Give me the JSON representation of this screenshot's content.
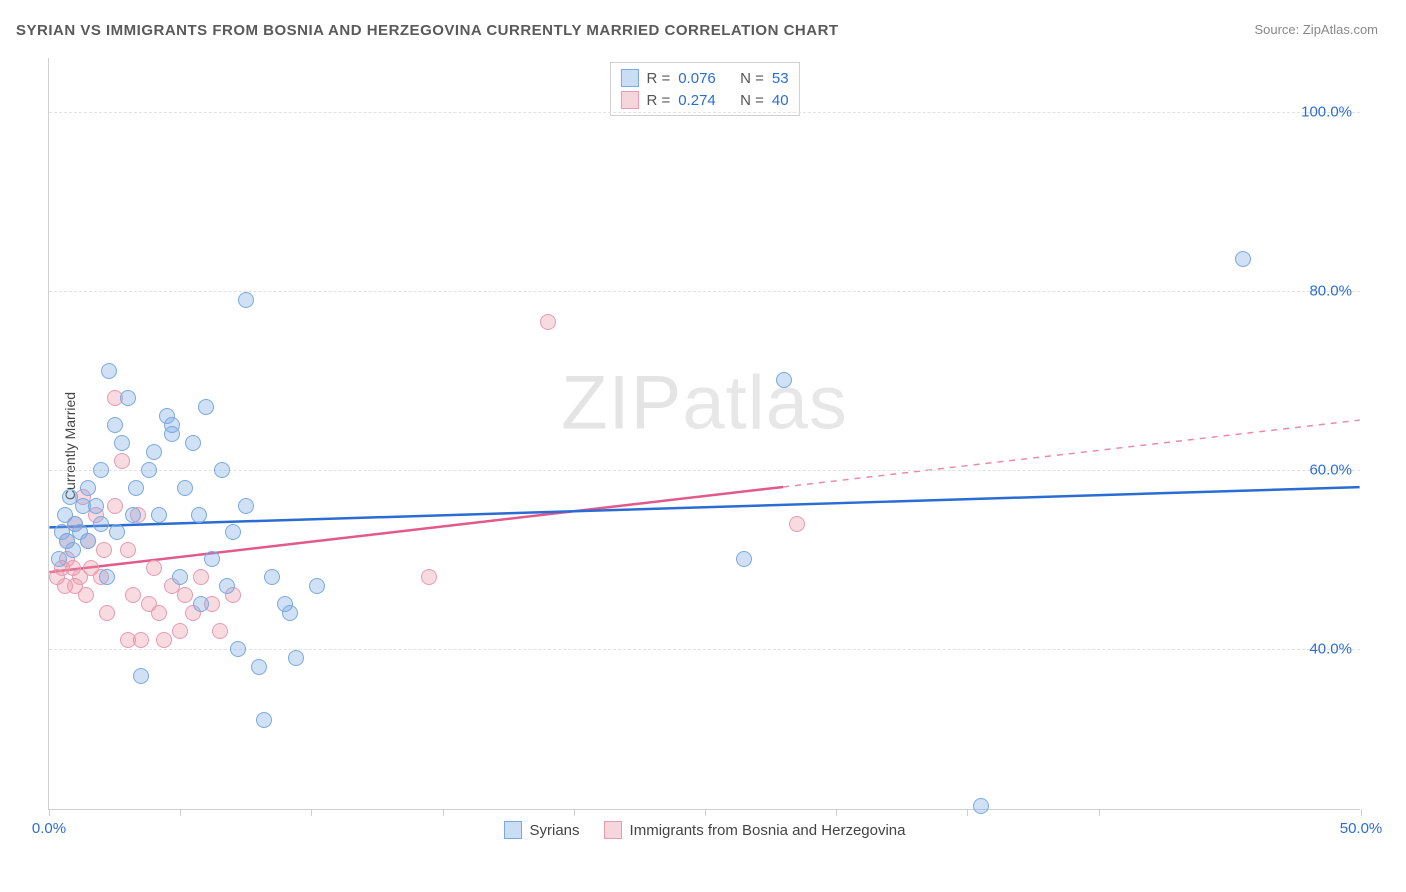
{
  "title": "SYRIAN VS IMMIGRANTS FROM BOSNIA AND HERZEGOVINA CURRENTLY MARRIED CORRELATION CHART",
  "source": "Source: ZipAtlas.com",
  "watermark_a": "ZIP",
  "watermark_b": "atlas",
  "yaxis_title": "Currently Married",
  "chart": {
    "type": "scatter",
    "xlim": [
      0,
      50
    ],
    "ylim": [
      22,
      106
    ],
    "xticks": [
      0,
      5,
      10,
      15,
      20,
      25,
      30,
      35,
      40,
      50
    ],
    "xlabels": {
      "0": "0.0%",
      "50": "50.0%"
    },
    "yticks": [
      40,
      60,
      80,
      100
    ],
    "ylabels": {
      "40": "40.0%",
      "60": "60.0%",
      "80": "80.0%",
      "100": "100.0%"
    },
    "grid_color": "#e2e2e2",
    "axis_color": "#cfcfcf",
    "background": "#ffffff",
    "series1": {
      "name": "Syrians",
      "color_fill": "rgba(120,170,230,0.35)",
      "color_stroke": "#7aa9e0",
      "R": "0.076",
      "N": "53",
      "trend_color": "#2b6cd4",
      "trend_y_at_x0": 53.5,
      "trend_y_at_x50": 58.0,
      "trend_solid_until_x": 50,
      "points": [
        [
          0.4,
          50
        ],
        [
          0.5,
          53
        ],
        [
          0.6,
          55
        ],
        [
          0.7,
          52
        ],
        [
          0.8,
          57
        ],
        [
          0.9,
          51
        ],
        [
          1.0,
          54
        ],
        [
          1.2,
          53
        ],
        [
          1.3,
          56
        ],
        [
          1.5,
          52
        ],
        [
          1.5,
          58
        ],
        [
          1.8,
          56
        ],
        [
          2.0,
          60
        ],
        [
          2.0,
          54
        ],
        [
          2.2,
          48
        ],
        [
          2.3,
          71
        ],
        [
          2.5,
          65
        ],
        [
          2.6,
          53
        ],
        [
          2.8,
          63
        ],
        [
          3.0,
          68
        ],
        [
          3.2,
          55
        ],
        [
          3.3,
          58
        ],
        [
          3.5,
          37
        ],
        [
          3.8,
          60
        ],
        [
          4.0,
          62
        ],
        [
          4.2,
          55
        ],
        [
          4.5,
          66
        ],
        [
          4.7,
          64
        ],
        [
          4.7,
          65
        ],
        [
          5.0,
          48
        ],
        [
          5.2,
          58
        ],
        [
          5.5,
          63
        ],
        [
          5.7,
          55
        ],
        [
          5.8,
          45
        ],
        [
          6.0,
          67
        ],
        [
          6.2,
          50
        ],
        [
          6.6,
          60
        ],
        [
          6.8,
          47
        ],
        [
          7.0,
          53
        ],
        [
          7.2,
          40
        ],
        [
          7.5,
          56
        ],
        [
          7.5,
          79
        ],
        [
          8.0,
          38
        ],
        [
          8.2,
          32
        ],
        [
          8.5,
          48
        ],
        [
          9.0,
          45
        ],
        [
          9.2,
          44
        ],
        [
          9.4,
          39
        ],
        [
          10.2,
          47
        ],
        [
          26.5,
          50
        ],
        [
          28.0,
          70
        ],
        [
          35.5,
          22.5
        ],
        [
          45.5,
          83.5
        ]
      ]
    },
    "series2": {
      "name": "Immigrants from Bosnia and Herzegovina",
      "color_fill": "rgba(235,150,170,0.35)",
      "color_stroke": "#e89bb0",
      "R": "0.274",
      "N": "40",
      "trend_color": "#e05a8a",
      "trend_y_at_x0": 48.5,
      "trend_y_at_x50": 65.5,
      "trend_solid_until_x": 28,
      "points": [
        [
          0.3,
          48
        ],
        [
          0.5,
          49
        ],
        [
          0.6,
          47
        ],
        [
          0.7,
          52
        ],
        [
          0.7,
          50
        ],
        [
          0.9,
          49
        ],
        [
          1.0,
          47
        ],
        [
          1.0,
          54
        ],
        [
          1.2,
          48
        ],
        [
          1.3,
          57
        ],
        [
          1.4,
          46
        ],
        [
          1.5,
          52
        ],
        [
          1.6,
          49
        ],
        [
          1.8,
          55
        ],
        [
          2.0,
          48
        ],
        [
          2.1,
          51
        ],
        [
          2.2,
          44
        ],
        [
          2.5,
          56
        ],
        [
          2.5,
          68
        ],
        [
          2.8,
          61
        ],
        [
          3.0,
          41
        ],
        [
          3.0,
          51
        ],
        [
          3.2,
          46
        ],
        [
          3.4,
          55
        ],
        [
          3.5,
          41
        ],
        [
          3.8,
          45
        ],
        [
          4.0,
          49
        ],
        [
          4.2,
          44
        ],
        [
          4.4,
          41
        ],
        [
          4.7,
          47
        ],
        [
          5.0,
          42
        ],
        [
          5.2,
          46
        ],
        [
          5.5,
          44
        ],
        [
          5.8,
          48
        ],
        [
          6.2,
          45
        ],
        [
          6.5,
          42
        ],
        [
          7.0,
          46
        ],
        [
          14.5,
          48
        ],
        [
          19.0,
          76.5
        ],
        [
          28.5,
          54
        ]
      ]
    }
  },
  "legend": {
    "r_label": "R =",
    "n_label": "N ="
  }
}
